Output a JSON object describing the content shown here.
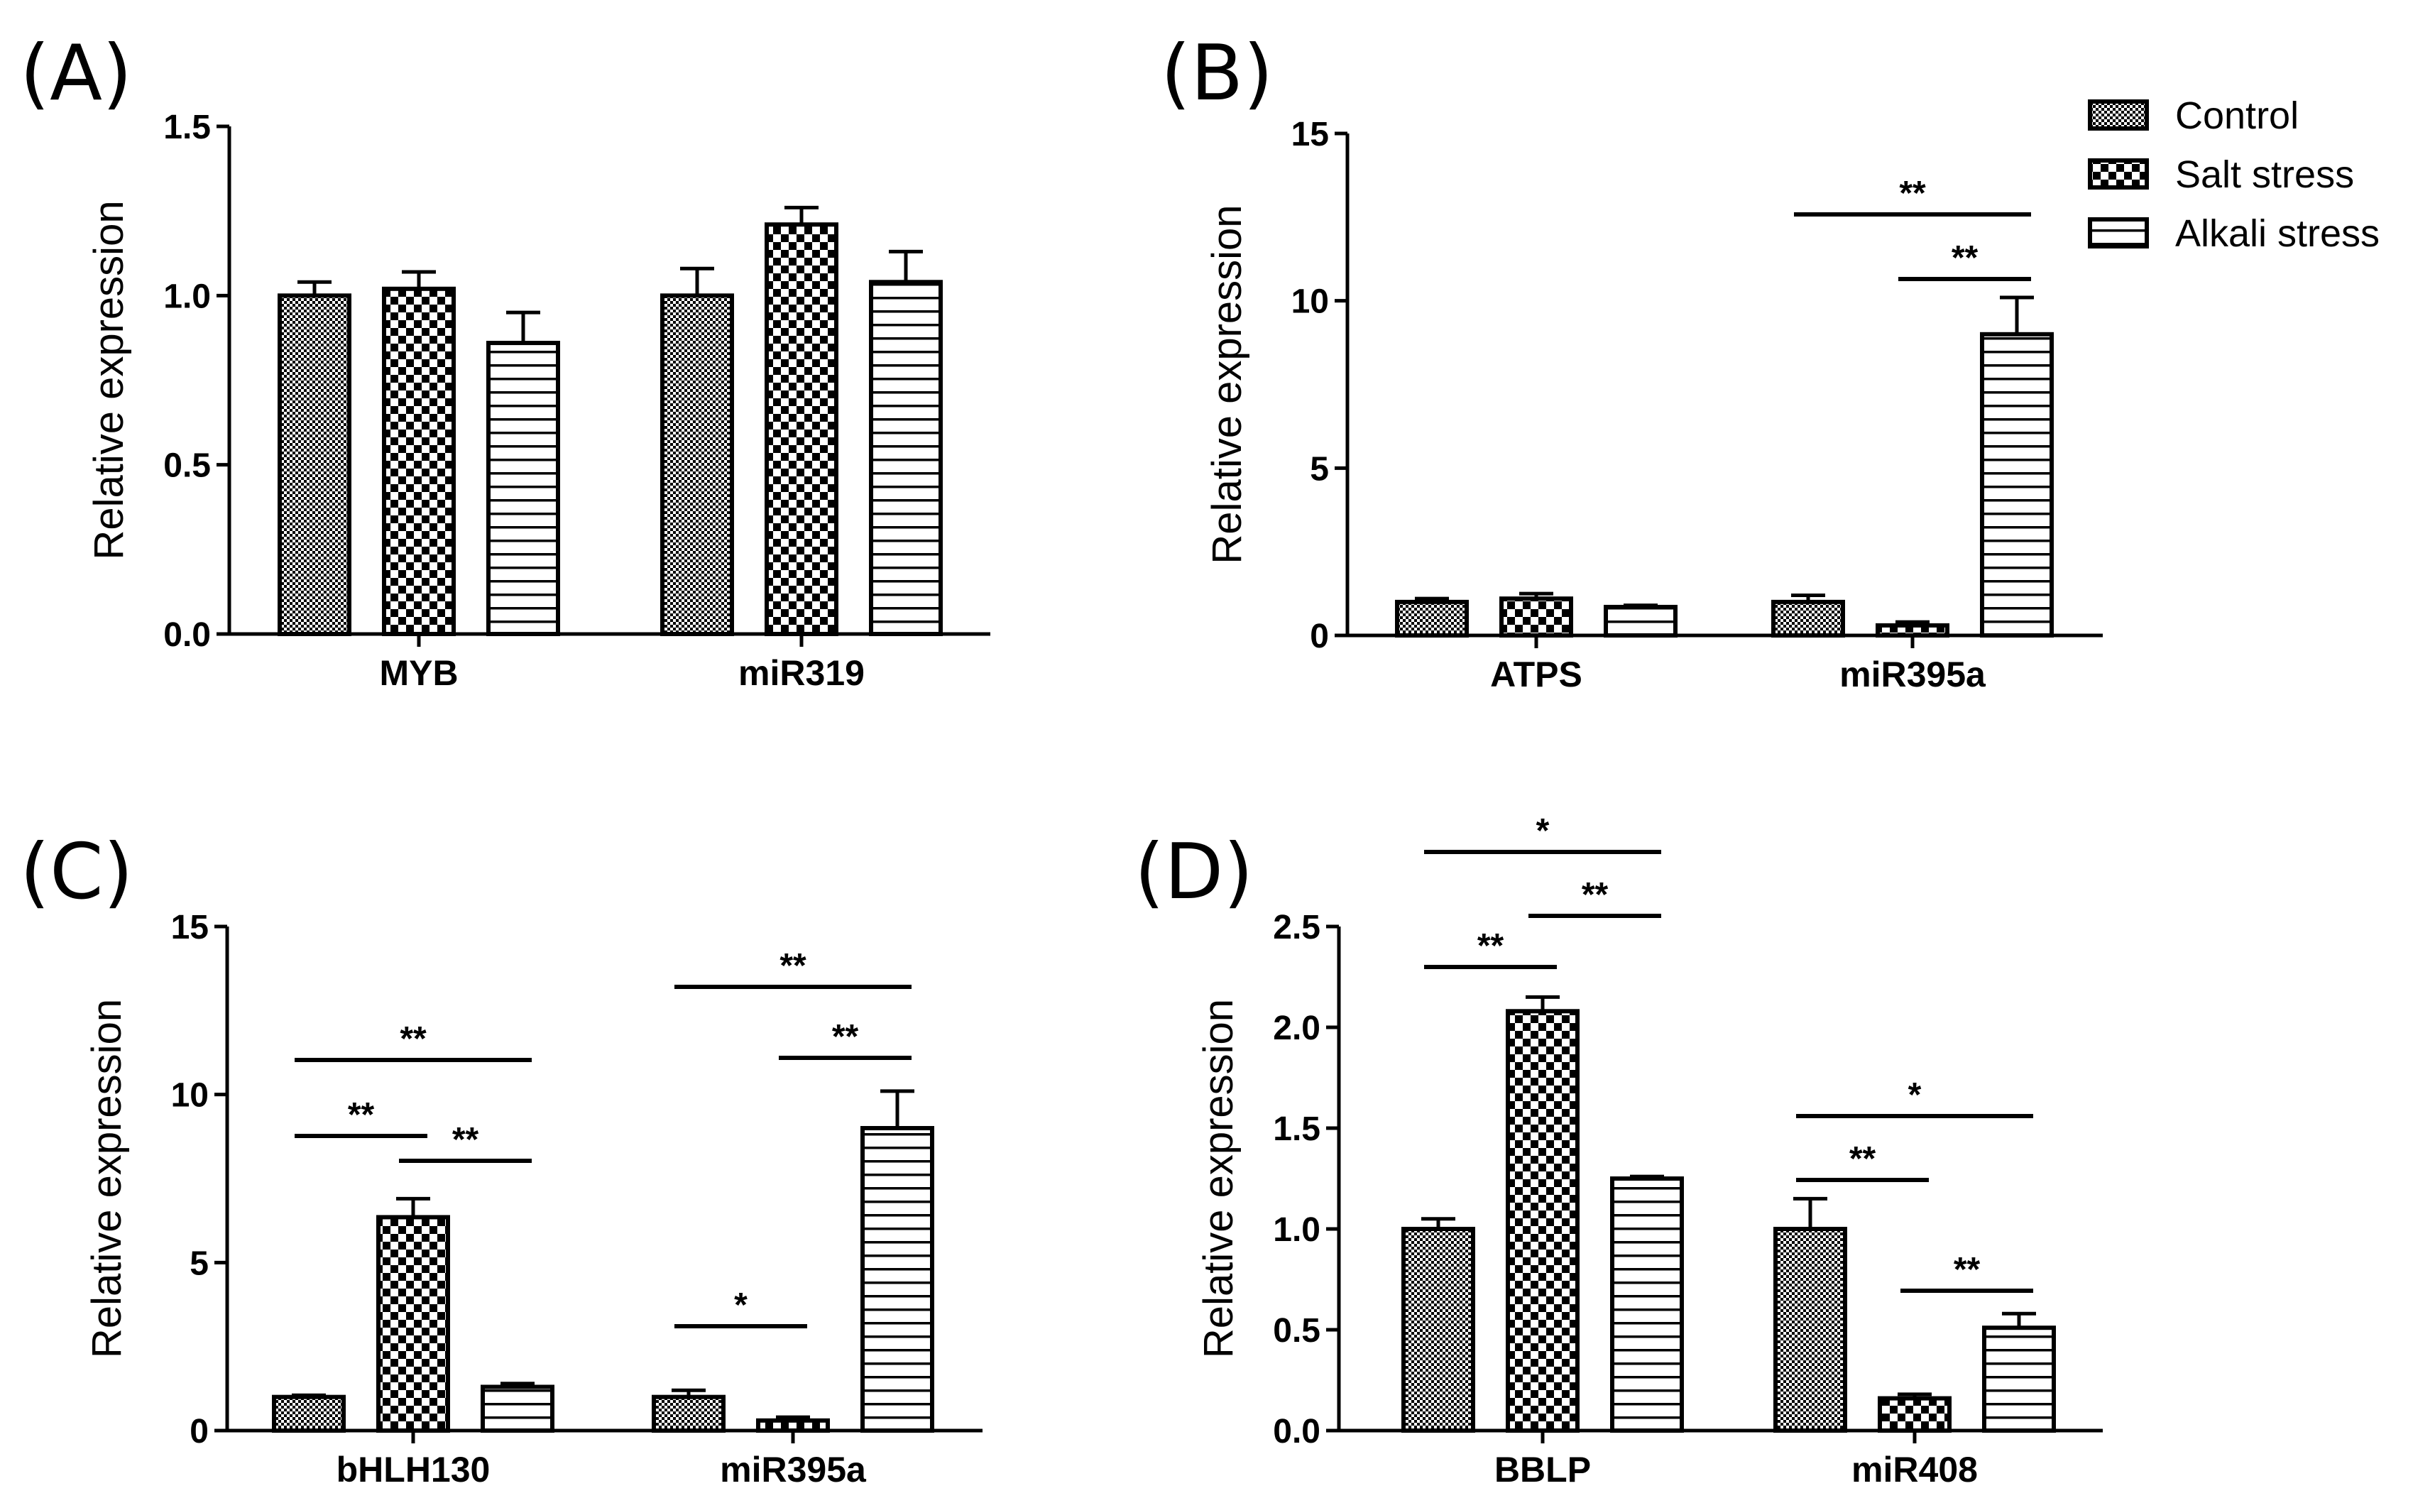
{
  "legend": [
    {
      "name": "Control",
      "pattern": "fine"
    },
    {
      "name": "Salt stress",
      "pattern": "check"
    },
    {
      "name": "Alkali stress",
      "pattern": "hlines"
    }
  ],
  "chart_data": [
    {
      "panel": "(A)",
      "type": "bar",
      "ylabel": "Relative expression",
      "ylim": [
        0,
        1.5
      ],
      "yticks": [
        "0.0",
        "0.5",
        "1.0",
        "1.5"
      ],
      "categories": [
        "MYB",
        "miR319"
      ],
      "series": [
        {
          "name": "Control",
          "values": [
            1.0,
            1.0
          ],
          "errors": [
            0.04,
            0.08
          ]
        },
        {
          "name": "Salt stress",
          "values": [
            1.02,
            1.21
          ],
          "errors": [
            0.05,
            0.05
          ]
        },
        {
          "name": "Alkali stress",
          "values": [
            0.86,
            1.04
          ],
          "errors": [
            0.09,
            0.09
          ]
        }
      ],
      "significance": []
    },
    {
      "panel": "(B)",
      "type": "bar",
      "ylabel": "Relative expression",
      "ylim": [
        0,
        15
      ],
      "yticks": [
        "0",
        "5",
        "10",
        "15"
      ],
      "categories": [
        "ATPS",
        "miR395a"
      ],
      "series": [
        {
          "name": "Control",
          "values": [
            1.0,
            1.0
          ],
          "errors": [
            0.1,
            0.2
          ]
        },
        {
          "name": "Salt stress",
          "values": [
            1.1,
            0.3
          ],
          "errors": [
            0.15,
            0.1
          ]
        },
        {
          "name": "Alkali stress",
          "values": [
            0.85,
            9.0
          ],
          "errors": [
            0.05,
            1.1
          ]
        }
      ],
      "significance": [
        {
          "category": 1,
          "from": 0,
          "to": 2,
          "level": 0,
          "label": "**"
        },
        {
          "category": 1,
          "from": 1,
          "to": 2,
          "level": 1,
          "label": "**"
        }
      ]
    },
    {
      "panel": "(C)",
      "type": "bar",
      "ylabel": "Relative expression",
      "ylim": [
        0,
        15
      ],
      "yticks": [
        "0",
        "5",
        "10",
        "15"
      ],
      "categories": [
        "bHLH130",
        "miR395a"
      ],
      "series": [
        {
          "name": "Control",
          "values": [
            1.0,
            1.0
          ],
          "errors": [
            0.05,
            0.2
          ]
        },
        {
          "name": "Salt stress",
          "values": [
            6.35,
            0.3
          ],
          "errors": [
            0.55,
            0.1
          ]
        },
        {
          "name": "Alkali stress",
          "values": [
            1.3,
            9.0
          ],
          "errors": [
            0.1,
            1.1
          ]
        }
      ],
      "significance": [
        {
          "category": 0,
          "from": 0,
          "to": 2,
          "level": 0,
          "label": "**"
        },
        {
          "category": 0,
          "from": 0,
          "to": 1,
          "level": 1,
          "label": "**"
        },
        {
          "category": 0,
          "from": 1,
          "to": 2,
          "level": 2,
          "label": "**"
        },
        {
          "category": 1,
          "from": 0,
          "to": 2,
          "level": 0,
          "label": "**"
        },
        {
          "category": 1,
          "from": 1,
          "to": 2,
          "level": 1,
          "label": "**"
        },
        {
          "category": 1,
          "from": 0,
          "to": 1,
          "level": 3,
          "label": "*"
        }
      ]
    },
    {
      "panel": "(D)",
      "type": "bar",
      "ylabel": "Relative expression",
      "ylim": [
        0,
        2.5
      ],
      "yticks": [
        "0.0",
        "0.5",
        "1.0",
        "1.5",
        "2.0",
        "2.5"
      ],
      "categories": [
        "BBLP",
        "miR408"
      ],
      "series": [
        {
          "name": "Control",
          "values": [
            1.0,
            1.0
          ],
          "errors": [
            0.05,
            0.15
          ]
        },
        {
          "name": "Salt stress",
          "values": [
            2.08,
            0.16
          ],
          "errors": [
            0.07,
            0.02
          ]
        },
        {
          "name": "Alkali stress",
          "values": [
            1.25,
            0.51
          ],
          "errors": [
            0.01,
            0.07
          ]
        }
      ],
      "significance": [
        {
          "category": 0,
          "from": 0,
          "to": 2,
          "level": 0,
          "label": "*"
        },
        {
          "category": 0,
          "from": 1,
          "to": 2,
          "level": 1,
          "label": "**"
        },
        {
          "category": 0,
          "from": 0,
          "to": 1,
          "level": 2,
          "label": "**"
        },
        {
          "category": 1,
          "from": 0,
          "to": 2,
          "level": 0,
          "label": "*"
        },
        {
          "category": 1,
          "from": 0,
          "to": 1,
          "level": 1,
          "label": "**"
        },
        {
          "category": 1,
          "from": 1,
          "to": 2,
          "level": 3,
          "label": "**"
        }
      ]
    }
  ]
}
